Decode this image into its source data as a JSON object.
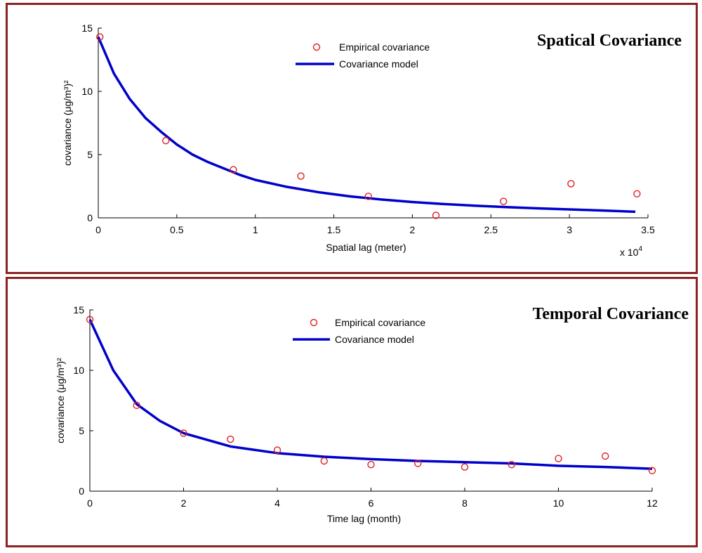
{
  "chart_data": [
    {
      "type": "scatter",
      "title": "Spatical Covariance",
      "xlabel": "Spatial lag (meter)",
      "ylabel": "covariance (μg/m³)²",
      "x_multiplier_label": "x 10",
      "x_multiplier_exp": "4",
      "xlim": [
        0,
        3.5
      ],
      "ylim": [
        0,
        15
      ],
      "x_ticks": [
        0,
        0.5,
        1,
        1.5,
        2,
        2.5,
        3,
        3.5
      ],
      "x_tick_labels": [
        "0",
        "0.5",
        "1",
        "1.5",
        "2",
        "2.5",
        "3",
        "3.5"
      ],
      "y_ticks": [
        0,
        5,
        10,
        15
      ],
      "y_tick_labels": [
        "0",
        "5",
        "10",
        "15"
      ],
      "legend": {
        "position": "top-center",
        "entries": [
          "Empirical covariance",
          "Covariance model"
        ]
      },
      "series": [
        {
          "name": "Empirical covariance",
          "marker": "circle",
          "color": "#e02020",
          "x": [
            0.01,
            0.43,
            0.86,
            1.29,
            1.72,
            2.15,
            2.58,
            3.01,
            3.43
          ],
          "y": [
            14.3,
            6.1,
            3.8,
            3.3,
            1.7,
            0.2,
            1.3,
            2.7,
            1.9
          ]
        },
        {
          "name": "Covariance model",
          "marker": "line",
          "color": "#0000cc",
          "x": [
            0,
            0.1,
            0.2,
            0.3,
            0.4,
            0.5,
            0.6,
            0.7,
            0.8,
            0.9,
            1.0,
            1.2,
            1.4,
            1.6,
            1.8,
            2.0,
            2.2,
            2.4,
            2.6,
            2.8,
            3.0,
            3.2,
            3.42
          ],
          "y": [
            14.3,
            11.4,
            9.4,
            7.9,
            6.8,
            5.8,
            5.0,
            4.4,
            3.9,
            3.4,
            3.0,
            2.45,
            2.03,
            1.7,
            1.45,
            1.25,
            1.09,
            0.96,
            0.85,
            0.75,
            0.67,
            0.58,
            0.48
          ]
        }
      ]
    },
    {
      "type": "scatter",
      "title": "Temporal Covariance",
      "xlabel": "Time lag (month)",
      "ylabel": "covariance (μg/m³)²",
      "xlim": [
        0,
        12
      ],
      "ylim": [
        0,
        15
      ],
      "x_ticks": [
        0,
        2,
        4,
        6,
        8,
        10,
        12
      ],
      "x_tick_labels": [
        "0",
        "2",
        "4",
        "6",
        "8",
        "10",
        "12"
      ],
      "y_ticks": [
        0,
        5,
        10,
        15
      ],
      "y_tick_labels": [
        "0",
        "5",
        "10",
        "15"
      ],
      "legend": {
        "position": "top-center",
        "entries": [
          "Empirical covariance",
          "Covariance model"
        ]
      },
      "series": [
        {
          "name": "Empirical covariance",
          "marker": "circle",
          "color": "#e02020",
          "x": [
            0,
            1,
            2,
            3,
            4,
            5,
            6,
            7,
            8,
            9,
            10,
            11,
            12
          ],
          "y": [
            14.2,
            7.1,
            4.8,
            4.3,
            3.4,
            2.5,
            2.2,
            2.3,
            2.0,
            2.2,
            2.7,
            2.9,
            1.7
          ]
        },
        {
          "name": "Covariance model",
          "marker": "line",
          "color": "#0000cc",
          "x": [
            0,
            0.5,
            1,
            1.5,
            2,
            3,
            4,
            5,
            6,
            7,
            8,
            9,
            10,
            11,
            12
          ],
          "y": [
            14.2,
            10.0,
            7.2,
            5.8,
            4.8,
            3.7,
            3.15,
            2.85,
            2.65,
            2.5,
            2.4,
            2.3,
            2.1,
            2.0,
            1.85
          ]
        }
      ]
    }
  ]
}
